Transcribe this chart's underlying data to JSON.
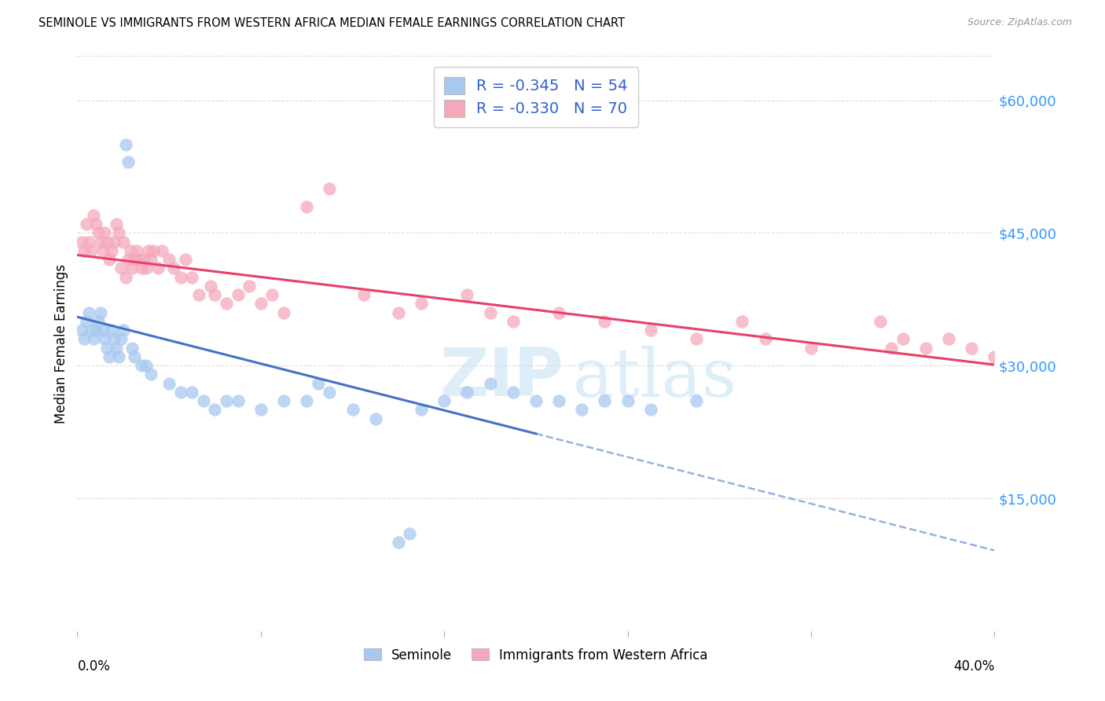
{
  "title": "SEMINOLE VS IMMIGRANTS FROM WESTERN AFRICA MEDIAN FEMALE EARNINGS CORRELATION CHART",
  "source": "Source: ZipAtlas.com",
  "ylabel": "Median Female Earnings",
  "y_ticks": [
    0,
    15000,
    30000,
    45000,
    60000
  ],
  "y_tick_labels": [
    "",
    "$15,000",
    "$30,000",
    "$45,000",
    "$60,000"
  ],
  "x_min": 0.0,
  "x_max": 40.0,
  "y_min": 0,
  "y_max": 65000,
  "watermark": "ZIPatlas",
  "legend_r1": "-0.345",
  "legend_n1": "54",
  "legend_r2": "-0.330",
  "legend_n2": "70",
  "color_blue_scatter": "#a8c8f0",
  "color_pink_scatter": "#f5a8bc",
  "color_blue_line": "#4472c4",
  "color_pink_line": "#e8406a",
  "color_r_value": "#3060cc",
  "color_y_ticks": "#3399ff",
  "seminole_x": [
    0.2,
    0.3,
    0.4,
    0.5,
    0.6,
    0.7,
    0.8,
    0.9,
    1.0,
    1.1,
    1.2,
    1.3,
    1.4,
    1.5,
    1.6,
    1.7,
    1.8,
    1.9,
    2.0,
    2.1,
    2.2,
    2.4,
    2.5,
    2.8,
    3.0,
    3.2,
    4.0,
    4.5,
    5.0,
    5.5,
    6.0,
    6.5,
    7.0,
    8.0,
    9.0,
    10.0,
    10.5,
    11.0,
    12.0,
    13.0,
    14.0,
    14.5,
    15.0,
    16.0,
    17.0,
    18.0,
    19.0,
    20.0,
    21.0,
    22.0,
    23.0,
    24.0,
    25.0,
    27.0
  ],
  "seminole_y": [
    34000,
    33000,
    35000,
    36000,
    34000,
    33000,
    34000,
    35000,
    36000,
    34000,
    33000,
    32000,
    31000,
    34000,
    33000,
    32000,
    31000,
    33000,
    34000,
    55000,
    53000,
    32000,
    31000,
    30000,
    30000,
    29000,
    28000,
    27000,
    27000,
    26000,
    25000,
    26000,
    26000,
    25000,
    26000,
    26000,
    28000,
    27000,
    25000,
    24000,
    10000,
    11000,
    25000,
    26000,
    27000,
    28000,
    27000,
    26000,
    26000,
    25000,
    26000,
    26000,
    25000,
    26000
  ],
  "western_africa_x": [
    0.2,
    0.3,
    0.4,
    0.5,
    0.6,
    0.7,
    0.8,
    0.9,
    1.0,
    1.1,
    1.2,
    1.3,
    1.4,
    1.5,
    1.6,
    1.7,
    1.8,
    1.9,
    2.0,
    2.1,
    2.2,
    2.3,
    2.4,
    2.5,
    2.6,
    2.7,
    2.8,
    2.9,
    3.0,
    3.1,
    3.2,
    3.3,
    3.5,
    3.7,
    4.0,
    4.2,
    4.5,
    4.7,
    5.0,
    5.3,
    5.8,
    6.0,
    6.5,
    7.0,
    7.5,
    8.0,
    8.5,
    9.0,
    10.0,
    11.0,
    12.5,
    14.0,
    15.0,
    17.0,
    18.0,
    19.0,
    21.0,
    23.0,
    25.0,
    27.0,
    29.0,
    30.0,
    32.0,
    35.0,
    35.5,
    36.0,
    37.0,
    38.0,
    39.0,
    40.0
  ],
  "western_africa_y": [
    44000,
    43000,
    46000,
    44000,
    43000,
    47000,
    46000,
    45000,
    44000,
    43000,
    45000,
    44000,
    42000,
    43000,
    44000,
    46000,
    45000,
    41000,
    44000,
    40000,
    42000,
    43000,
    41000,
    42000,
    43000,
    42000,
    41000,
    42000,
    41000,
    43000,
    42000,
    43000,
    41000,
    43000,
    42000,
    41000,
    40000,
    42000,
    40000,
    38000,
    39000,
    38000,
    37000,
    38000,
    39000,
    37000,
    38000,
    36000,
    48000,
    50000,
    38000,
    36000,
    37000,
    38000,
    36000,
    35000,
    36000,
    35000,
    34000,
    33000,
    35000,
    33000,
    32000,
    35000,
    32000,
    33000,
    32000,
    33000,
    32000,
    31000
  ]
}
